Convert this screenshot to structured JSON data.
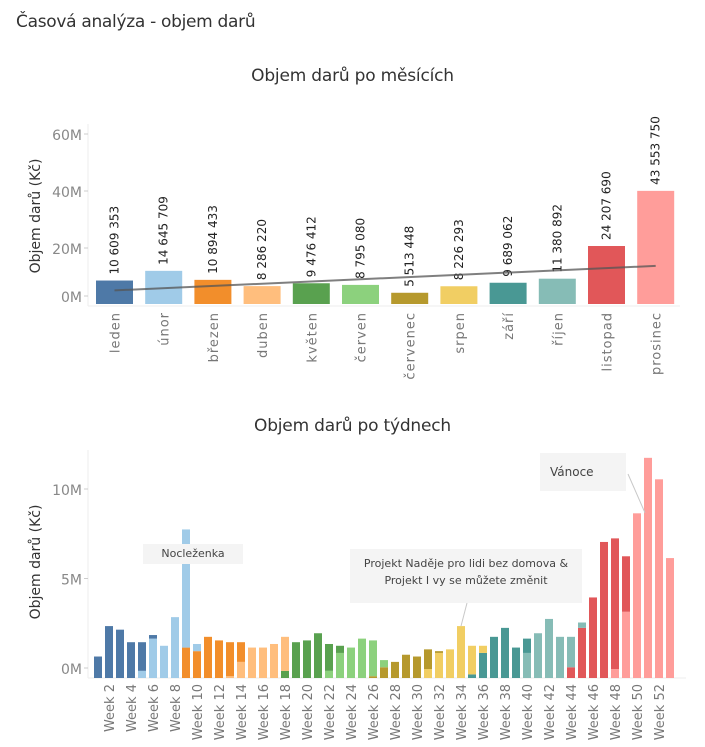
{
  "page": {
    "title": "Časová analýza - objem darů"
  },
  "chart_data": [
    {
      "type": "bar",
      "title": "Objem darů po měsících",
      "xlabel": "",
      "ylabel": "Objem darů (Kč)",
      "ylim": [
        0,
        65000000
      ],
      "yticks": [
        "0M",
        "20M",
        "40M",
        "60M"
      ],
      "ytick_values": [
        0,
        20000000,
        40000000,
        60000000
      ],
      "categories": [
        "leden",
        "únor",
        "březen",
        "duben",
        "květen",
        "červen",
        "červenec",
        "srpen",
        "září",
        "říjen",
        "listopad",
        "prosinec"
      ],
      "values": [
        10609353,
        14645709,
        10894433,
        8286220,
        9476412,
        8795080,
        5513448,
        8226293,
        9689062,
        11380892,
        24207690,
        43553750
      ],
      "data_labels": [
        "10 609 353",
        "14 645 709",
        "10 894 433",
        "8 286 220",
        "9 476 412",
        "8 795 080",
        "5 513 448",
        "8 226 293",
        "9 689 062",
        "11 380 892",
        "24 207 690",
        "43 553 750"
      ],
      "colors": [
        "#4e79a7",
        "#a0cbe8",
        "#f28e2b",
        "#ffbe7d",
        "#59a14f",
        "#8cd17d",
        "#b6992d",
        "#f1ce63",
        "#499894",
        "#86bcb6",
        "#e15759",
        "#ff9d9a"
      ],
      "trend_line": {
        "color": "#555555",
        "start_value": 6500000,
        "end_value": 16700000
      },
      "grid": false,
      "legend": "none"
    },
    {
      "type": "bar",
      "stacked": true,
      "title": "Objem darů po týdnech",
      "xlabel": "",
      "ylabel": "Objem darů (Kč)",
      "ylim": [
        0,
        12500000
      ],
      "yticks": [
        "0M",
        "5M",
        "10M"
      ],
      "ytick_values": [
        0,
        5000000,
        10000000
      ],
      "tick_labels": [
        "Week 2",
        "Week 4",
        "Week 6",
        "Week 8",
        "Week 10",
        "Week 12",
        "Week 14",
        "Week 16",
        "Week 18",
        "Week 20",
        "Week 22",
        "Week 24",
        "Week 26",
        "Week 28",
        "Week 30",
        "Week 32",
        "Week 34",
        "Week 36",
        "Week 38",
        "Week 40",
        "Week 42",
        "Week 44",
        "Week 46",
        "Week 48",
        "Week 50",
        "Week 52"
      ],
      "month_colors": {
        "leden": "#4e79a7",
        "únor": "#a0cbe8",
        "březen": "#f28e2b",
        "duben": "#ffbe7d",
        "květen": "#59a14f",
        "červen": "#8cd17d",
        "červenec": "#b6992d",
        "srpen": "#f1ce63",
        "září": "#499894",
        "říjen": "#86bcb6",
        "listopad": "#e15759",
        "prosinec": "#ff9d9a"
      },
      "weeks": [
        {
          "week": 1,
          "segments": [
            [
              "leden",
              1.2
            ]
          ]
        },
        {
          "week": 2,
          "segments": [
            [
              "leden",
              2.9
            ]
          ]
        },
        {
          "week": 3,
          "segments": [
            [
              "leden",
              2.7
            ]
          ]
        },
        {
          "week": 4,
          "segments": [
            [
              "leden",
              2.0
            ]
          ]
        },
        {
          "week": 5,
          "segments": [
            [
              "únor",
              0.4
            ],
            [
              "leden",
              1.6
            ]
          ]
        },
        {
          "week": 6,
          "segments": [
            [
              "únor",
              2.2
            ],
            [
              "leden",
              0.2
            ]
          ]
        },
        {
          "week": 7,
          "segments": [
            [
              "únor",
              1.8
            ]
          ]
        },
        {
          "week": 8,
          "segments": [
            [
              "únor",
              3.4
            ]
          ]
        },
        {
          "week": 9,
          "segments": [
            [
              "březen",
              1.7
            ],
            [
              "únor",
              6.6
            ]
          ]
        },
        {
          "week": 10,
          "segments": [
            [
              "březen",
              1.5
            ],
            [
              "únor",
              0.4
            ]
          ]
        },
        {
          "week": 11,
          "segments": [
            [
              "březen",
              2.3
            ]
          ]
        },
        {
          "week": 12,
          "segments": [
            [
              "březen",
              2.1
            ]
          ]
        },
        {
          "week": 13,
          "segments": [
            [
              "duben",
              0.1
            ],
            [
              "březen",
              1.9
            ]
          ]
        },
        {
          "week": 14,
          "segments": [
            [
              "duben",
              0.9
            ],
            [
              "březen",
              1.1
            ]
          ]
        },
        {
          "week": 15,
          "segments": [
            [
              "duben",
              1.7
            ]
          ]
        },
        {
          "week": 16,
          "segments": [
            [
              "duben",
              1.7
            ]
          ]
        },
        {
          "week": 17,
          "segments": [
            [
              "duben",
              1.9
            ]
          ]
        },
        {
          "week": 18,
          "segments": [
            [
              "květen",
              0.4
            ],
            [
              "duben",
              1.9
            ]
          ]
        },
        {
          "week": 19,
          "segments": [
            [
              "květen",
              2.0
            ]
          ]
        },
        {
          "week": 20,
          "segments": [
            [
              "květen",
              2.1
            ]
          ]
        },
        {
          "week": 21,
          "segments": [
            [
              "květen",
              2.5
            ]
          ]
        },
        {
          "week": 22,
          "segments": [
            [
              "červen",
              0.4
            ],
            [
              "květen",
              1.5
            ]
          ]
        },
        {
          "week": 23,
          "segments": [
            [
              "červen",
              1.4
            ],
            [
              "květen",
              0.4
            ]
          ]
        },
        {
          "week": 24,
          "segments": [
            [
              "červen",
              1.7
            ]
          ]
        },
        {
          "week": 25,
          "segments": [
            [
              "červen",
              2.2
            ]
          ]
        },
        {
          "week": 26,
          "segments": [
            [
              "červenec",
              0.1
            ],
            [
              "červen",
              2.0
            ]
          ]
        },
        {
          "week": 27,
          "segments": [
            [
              "červenec",
              0.6
            ],
            [
              "červen",
              0.4
            ]
          ]
        },
        {
          "week": 28,
          "segments": [
            [
              "červenec",
              0.9
            ]
          ]
        },
        {
          "week": 29,
          "segments": [
            [
              "červenec",
              1.3
            ]
          ]
        },
        {
          "week": 30,
          "segments": [
            [
              "červenec",
              1.2
            ]
          ]
        },
        {
          "week": 31,
          "segments": [
            [
              "srpen",
              0.5
            ],
            [
              "červenec",
              1.1
            ]
          ]
        },
        {
          "week": 32,
          "segments": [
            [
              "srpen",
              1.4
            ],
            [
              "červenec",
              0.1
            ]
          ]
        },
        {
          "week": 33,
          "segments": [
            [
              "srpen",
              1.6
            ]
          ]
        },
        {
          "week": 34,
          "segments": [
            [
              "srpen",
              2.9
            ]
          ]
        },
        {
          "week": 35,
          "segments": [
            [
              "září",
              0.2
            ],
            [
              "srpen",
              1.6
            ]
          ]
        },
        {
          "week": 36,
          "segments": [
            [
              "září",
              1.4
            ],
            [
              "srpen",
              0.4
            ]
          ]
        },
        {
          "week": 37,
          "segments": [
            [
              "září",
              2.3
            ]
          ]
        },
        {
          "week": 38,
          "segments": [
            [
              "září",
              2.8
            ]
          ]
        },
        {
          "week": 39,
          "segments": [
            [
              "září",
              1.7
            ]
          ]
        },
        {
          "week": 40,
          "segments": [
            [
              "říjen",
              1.4
            ],
            [
              "září",
              0.8
            ]
          ]
        },
        {
          "week": 41,
          "segments": [
            [
              "říjen",
              2.5
            ]
          ]
        },
        {
          "week": 42,
          "segments": [
            [
              "říjen",
              3.3
            ]
          ]
        },
        {
          "week": 43,
          "segments": [
            [
              "říjen",
              2.3
            ]
          ]
        },
        {
          "week": 44,
          "segments": [
            [
              "listopad",
              0.6
            ],
            [
              "říjen",
              1.7
            ]
          ]
        },
        {
          "week": 45,
          "segments": [
            [
              "listopad",
              2.8
            ],
            [
              "říjen",
              0.3
            ]
          ]
        },
        {
          "week": 46,
          "segments": [
            [
              "listopad",
              4.5
            ]
          ]
        },
        {
          "week": 47,
          "segments": [
            [
              "listopad",
              7.6
            ]
          ]
        },
        {
          "week": 48,
          "segments": [
            [
              "prosinec",
              0.5
            ],
            [
              "listopad",
              7.3
            ]
          ]
        },
        {
          "week": 49,
          "segments": [
            [
              "prosinec",
              3.7
            ],
            [
              "listopad",
              3.1
            ]
          ]
        },
        {
          "week": 50,
          "segments": [
            [
              "prosinec",
              9.2
            ]
          ]
        },
        {
          "week": 51,
          "segments": [
            [
              "prosinec",
              12.3
            ]
          ]
        },
        {
          "week": 52,
          "segments": [
            [
              "prosinec",
              11.1
            ]
          ]
        },
        {
          "week": 53,
          "segments": [
            [
              "prosinec",
              6.7
            ]
          ]
        }
      ],
      "value_unit": "M Kč",
      "annotations": [
        {
          "text": "Nocleženka",
          "week": 9
        },
        {
          "text_line1": "Projekt Naděje pro lidi bez domova &",
          "text_line2": "Projekt I vy se můžete změnit",
          "week": 34
        },
        {
          "text": "Vánoce",
          "week": 51
        }
      ],
      "grid": false,
      "legend": "none"
    }
  ]
}
